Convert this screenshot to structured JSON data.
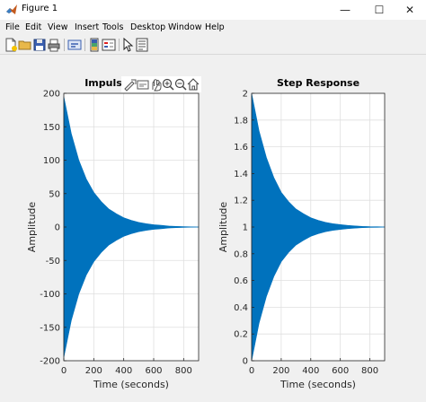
{
  "window": {
    "title": "Figure 1",
    "controls": {
      "minimize": "—",
      "maximize": "☐",
      "close": "✕"
    }
  },
  "menu": [
    "File",
    "Edit",
    "View",
    "Insert",
    "Tools",
    "Desktop",
    "Window",
    "Help"
  ],
  "toolbar": [
    "new-figure-icon",
    "open-file-icon",
    "save-icon",
    "print-icon",
    "link-plot-icon",
    "insert-colorbar-icon",
    "insert-legend-icon",
    "edit-plot-icon",
    "property-inspector-icon"
  ],
  "axes_toolbar": [
    "data-tips-icon",
    "brush-icon",
    "pan-icon",
    "zoom-in-icon",
    "zoom-out-icon",
    "restore-view-icon"
  ],
  "colors": {
    "fill": "#0072bd",
    "axis": "#262626",
    "grid": "#dfdfdf"
  },
  "chart_data": [
    {
      "type": "area",
      "title": "Impuls",
      "xlabel": "Time (seconds)",
      "ylabel": "Amplitude",
      "xlim": [
        0,
        900
      ],
      "ylim": [
        -200,
        200
      ],
      "xticks": [
        0,
        200,
        400,
        600,
        800
      ],
      "yticks": [
        -200,
        -150,
        -100,
        -50,
        0,
        50,
        100,
        150,
        200
      ],
      "series": [
        {
          "x": [
            0,
            50,
            100,
            150,
            200,
            250,
            300,
            350,
            400,
            450,
            500,
            550,
            600,
            650,
            700,
            750,
            800,
            850,
            900
          ],
          "upper": [
            195,
            140,
            100,
            72,
            52,
            38,
            27,
            20,
            14,
            10,
            7,
            5,
            3.5,
            2.5,
            1.5,
            1,
            0.5,
            0.3,
            0.2
          ],
          "lower": [
            -195,
            -140,
            -100,
            -72,
            -52,
            -38,
            -27,
            -20,
            -14,
            -10,
            -7,
            -5,
            -3.5,
            -2.5,
            -1.5,
            -1,
            -0.5,
            -0.3,
            -0.2
          ]
        }
      ],
      "grid": true
    },
    {
      "type": "area",
      "title": "Step Response",
      "xlabel": "Time (seconds)",
      "ylabel": "Amplitude",
      "xlim": [
        0,
        900
      ],
      "ylim": [
        0,
        2
      ],
      "xticks": [
        0,
        200,
        400,
        600,
        800
      ],
      "yticks": [
        0,
        0.2,
        0.4,
        0.6,
        0.8,
        1,
        1.2,
        1.4,
        1.6,
        1.8,
        2
      ],
      "series": [
        {
          "x": [
            0,
            50,
            100,
            150,
            200,
            250,
            300,
            350,
            400,
            450,
            500,
            550,
            600,
            650,
            700,
            750,
            800,
            850,
            900
          ],
          "upper": [
            2.0,
            1.72,
            1.52,
            1.37,
            1.26,
            1.19,
            1.135,
            1.1,
            1.07,
            1.05,
            1.035,
            1.025,
            1.018,
            1.012,
            1.008,
            1.005,
            1.003,
            1.002,
            1.001
          ],
          "lower": [
            0.0,
            0.28,
            0.48,
            0.63,
            0.74,
            0.81,
            0.865,
            0.9,
            0.93,
            0.95,
            0.965,
            0.975,
            0.982,
            0.988,
            0.992,
            0.995,
            0.997,
            0.998,
            0.999
          ]
        }
      ],
      "grid": true
    }
  ]
}
